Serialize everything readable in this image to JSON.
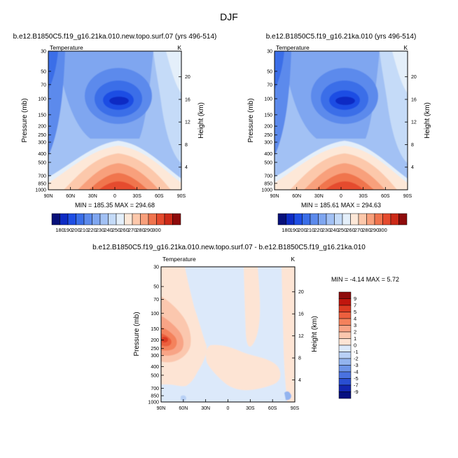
{
  "page": {
    "title": "DJF"
  },
  "chart_data": [
    {
      "type": "heatmap",
      "title": "b.e12.B1850C5.f19_g16.21ka.010.new.topo.surf.07 (yrs 496-514)",
      "subtitle_left": "Temperature",
      "subtitle_right": "K",
      "xlabel": "",
      "ylabel": "Pressure (mb)",
      "y2label": "Height (km)",
      "x_ticks": [
        "90N",
        "60N",
        "30N",
        "0",
        "30S",
        "60S",
        "90S"
      ],
      "y_ticks": [
        "30",
        "50",
        "70",
        "100",
        "150",
        "200",
        "250",
        "300",
        "400",
        "500",
        "700",
        "850",
        "1000"
      ],
      "y2_ticks": [
        "20",
        "16",
        "12",
        "8",
        "4"
      ],
      "y_scale": "log",
      "ylim": [
        1000,
        30
      ],
      "stats": "MIN = 185.35   MAX = 294.68",
      "min": 185.35,
      "max": 294.68,
      "colorbar": {
        "orientation": "horizontal",
        "labels": [
          "180",
          "190",
          "200",
          "210",
          "220",
          "230",
          "240",
          "250",
          "260",
          "270",
          "280",
          "290",
          "300"
        ],
        "colors": [
          "#08107a",
          "#0d2bc4",
          "#1e4ee4",
          "#3a6ee8",
          "#5c8aec",
          "#7fa6f0",
          "#a2c1f4",
          "#c5dbf8",
          "#e4effa",
          "#fde8d8",
          "#fcc8ab",
          "#f8a07c",
          "#f0744e",
          "#e54b2e",
          "#cc2a18",
          "#8e0b0b"
        ]
      },
      "levels_label": "Temperature"
    },
    {
      "type": "heatmap",
      "title": "b.e12.B1850C5.f19_g16.21ka.010 (yrs 496-514)",
      "subtitle_left": "Temperature",
      "subtitle_right": "K",
      "xlabel": "",
      "ylabel": "Pressure (mb)",
      "y2label": "Height (km)",
      "x_ticks": [
        "90N",
        "60N",
        "30N",
        "0",
        "30S",
        "60S",
        "90S"
      ],
      "y_ticks": [
        "30",
        "50",
        "70",
        "100",
        "150",
        "200",
        "250",
        "300",
        "400",
        "500",
        "700",
        "850",
        "1000"
      ],
      "y2_ticks": [
        "20",
        "16",
        "12",
        "8",
        "4"
      ],
      "y_scale": "log",
      "ylim": [
        1000,
        30
      ],
      "stats": "MIN = 185.61   MAX = 294.63",
      "min": 185.61,
      "max": 294.63,
      "colorbar": {
        "orientation": "horizontal",
        "labels": [
          "180",
          "190",
          "200",
          "210",
          "220",
          "230",
          "240",
          "250",
          "260",
          "270",
          "280",
          "290",
          "300"
        ],
        "colors": [
          "#08107a",
          "#0d2bc4",
          "#1e4ee4",
          "#3a6ee8",
          "#5c8aec",
          "#7fa6f0",
          "#a2c1f4",
          "#c5dbf8",
          "#e4effa",
          "#fde8d8",
          "#fcc8ab",
          "#f8a07c",
          "#f0744e",
          "#e54b2e",
          "#cc2a18",
          "#8e0b0b"
        ]
      }
    },
    {
      "type": "heatmap",
      "title": "b.e12.B1850C5.f19_g16.21ka.010.new.topo.surf.07 - b.e12.B1850C5.f19_g16.21ka.010",
      "subtitle_left": "Temperature",
      "subtitle_right": "K",
      "xlabel": "",
      "ylabel": "Pressure (mb)",
      "y2label": "Height (km)",
      "x_ticks": [
        "90N",
        "60N",
        "30N",
        "0",
        "30S",
        "60S",
        "90S"
      ],
      "y_ticks": [
        "30",
        "50",
        "70",
        "100",
        "150",
        "200",
        "250",
        "300",
        "400",
        "500",
        "700",
        "850",
        "1000"
      ],
      "y2_ticks": [
        "20",
        "16",
        "12",
        "8",
        "4"
      ],
      "y_scale": "log",
      "ylim": [
        1000,
        30
      ],
      "stats": "MIN =  -4.14   MAX =   5.72",
      "min": -4.14,
      "max": 5.72,
      "colorbar": {
        "orientation": "vertical",
        "labels": [
          "9",
          "7",
          "5",
          "4",
          "3",
          "2",
          "1",
          "0",
          "-1",
          "-2",
          "-3",
          "-4",
          "-5",
          "-7",
          "-9"
        ],
        "colors": [
          "#8e0b0b",
          "#c0160e",
          "#dc3b22",
          "#ec5f3e",
          "#f4825c",
          "#f8a486",
          "#fbc7ae",
          "#fde4d4",
          "#dce9fa",
          "#b8d0f5",
          "#93b4ef",
          "#6d94e8",
          "#4a72e0",
          "#2a4ed2",
          "#1326b0",
          "#061080"
        ]
      }
    }
  ]
}
